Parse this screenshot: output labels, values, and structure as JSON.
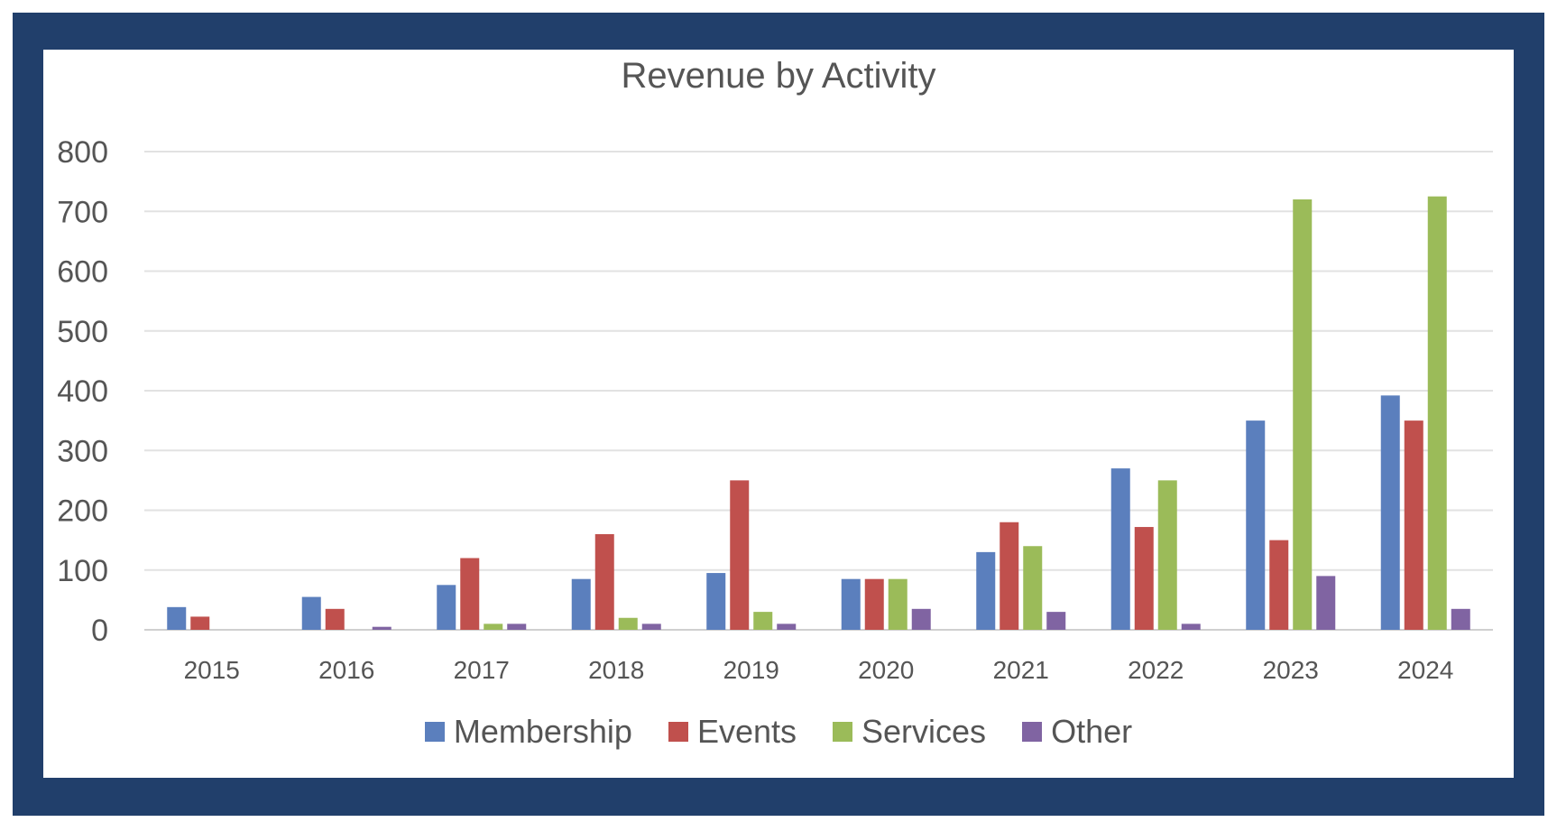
{
  "chart_data": {
    "type": "bar",
    "title": "Revenue by Activity",
    "xlabel": "",
    "ylabel": "",
    "ylim": [
      0,
      800
    ],
    "yticks": [
      "0",
      "100",
      "200",
      "300",
      "400",
      "500",
      "600",
      "700",
      "800"
    ],
    "grid": true,
    "legend_position": "bottom",
    "categories": [
      "2015",
      "2016",
      "2017",
      "2018",
      "2019",
      "2020",
      "2021",
      "2022",
      "2023",
      "2024"
    ],
    "series": [
      {
        "name": "Membership",
        "color": "#5b7fbd",
        "values": [
          38,
          55,
          75,
          85,
          95,
          85,
          130,
          270,
          350,
          392
        ]
      },
      {
        "name": "Events",
        "color": "#c0504d",
        "values": [
          22,
          35,
          120,
          160,
          250,
          85,
          180,
          172,
          150,
          350
        ]
      },
      {
        "name": "Services",
        "color": "#9bbb59",
        "values": [
          0,
          0,
          10,
          20,
          30,
          85,
          140,
          250,
          720,
          725
        ]
      },
      {
        "name": "Other",
        "color": "#8064a2",
        "values": [
          0,
          5,
          10,
          10,
          10,
          35,
          30,
          10,
          90,
          35
        ]
      }
    ]
  }
}
